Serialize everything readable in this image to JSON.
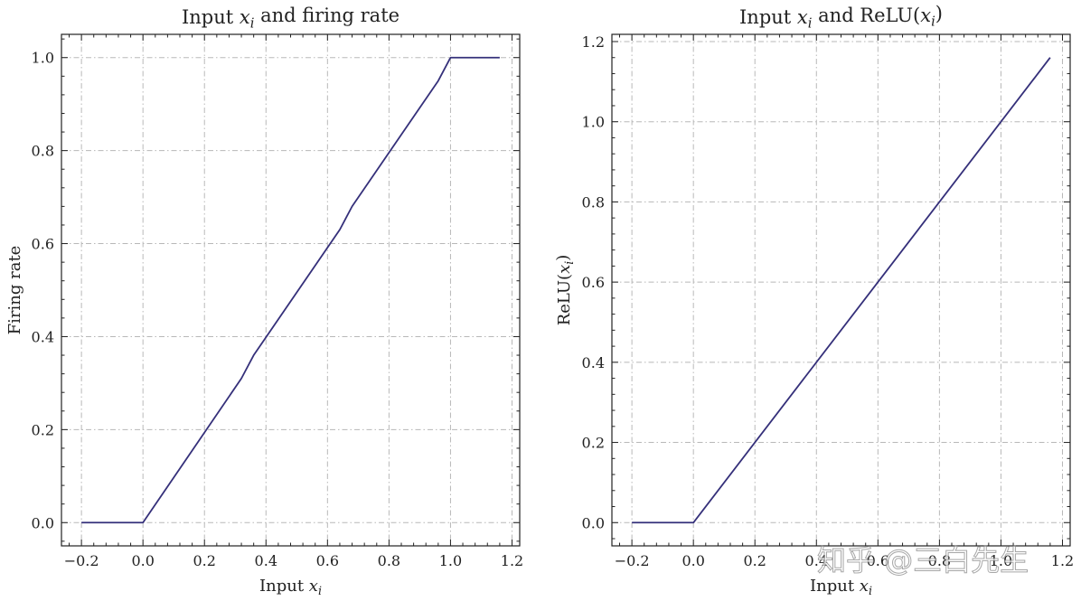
{
  "chart_data": [
    {
      "type": "line",
      "title": "Input x_i and firing rate",
      "title_parts": {
        "pre": "Input ",
        "var": "x",
        "sub": "i",
        "post": " and firing rate"
      },
      "xlabel": "Input x_i",
      "xlabel_parts": {
        "pre": "Input ",
        "var": "x",
        "sub": "i"
      },
      "ylabel": "Firing rate",
      "xlim": [
        -0.265,
        1.225
      ],
      "ylim": [
        -0.05,
        1.05
      ],
      "xticks": [
        -0.2,
        0.0,
        0.2,
        0.4,
        0.6,
        0.8,
        1.0,
        1.2
      ],
      "xtick_labels": [
        "−0.2",
        "0.0",
        "0.2",
        "0.4",
        "0.6",
        "0.8",
        "1.0",
        "1.2"
      ],
      "yticks": [
        0.0,
        0.2,
        0.4,
        0.6,
        0.8,
        1.0
      ],
      "ytick_labels": [
        "0.0",
        "0.2",
        "0.4",
        "0.6",
        "0.8",
        "1.0"
      ],
      "grid": true,
      "series": [
        {
          "name": "firing rate",
          "color": "#35307a",
          "x": [
            -0.2,
            0.0,
            0.32,
            0.36,
            0.64,
            0.68,
            0.96,
            1.0,
            1.16
          ],
          "y": [
            0.0,
            0.0,
            0.31,
            0.36,
            0.63,
            0.68,
            0.95,
            1.0,
            1.0
          ]
        }
      ]
    },
    {
      "type": "line",
      "title": "Input x_i and ReLU(x_i)",
      "title_parts": {
        "pre": "Input ",
        "var": "x",
        "sub": "i",
        "post": " and ReLU(",
        "var2": "x",
        "sub2": "i",
        "post2": ")"
      },
      "xlabel": "Input x_i",
      "xlabel_parts": {
        "pre": "Input ",
        "var": "x",
        "sub": "i"
      },
      "ylabel": "ReLU(x_i)",
      "ylabel_parts": {
        "pre": "ReLU(",
        "var": "x",
        "sub": "i",
        "post": ")"
      },
      "xlim": [
        -0.265,
        1.225
      ],
      "ylim": [
        -0.058,
        1.218
      ],
      "xticks": [
        -0.2,
        0.0,
        0.2,
        0.4,
        0.6,
        0.8,
        1.0,
        1.2
      ],
      "xtick_labels": [
        "−0.2",
        "0.0",
        "0.2",
        "0.4",
        "0.6",
        "0.8",
        "1.0",
        "1.2"
      ],
      "yticks": [
        0.0,
        0.2,
        0.4,
        0.6,
        0.8,
        1.0,
        1.2
      ],
      "ytick_labels": [
        "0.0",
        "0.2",
        "0.4",
        "0.6",
        "0.8",
        "1.0",
        "1.2"
      ],
      "grid": true,
      "series": [
        {
          "name": "ReLU",
          "color": "#35307a",
          "x": [
            -0.2,
            0.0,
            1.16
          ],
          "y": [
            0.0,
            0.0,
            1.16
          ]
        }
      ]
    }
  ],
  "watermark": "知乎 @三白先生"
}
